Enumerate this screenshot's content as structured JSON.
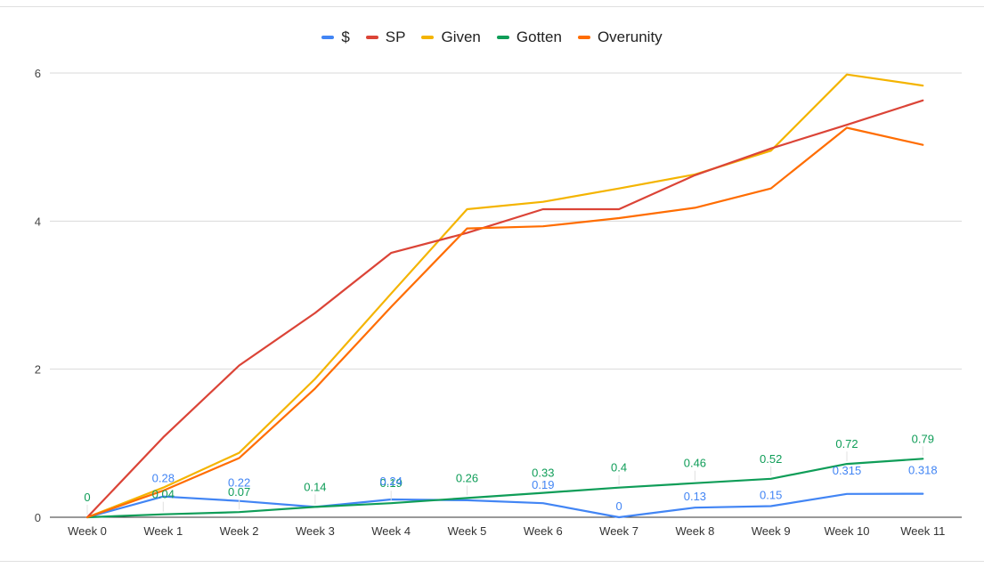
{
  "chart_data": {
    "type": "line",
    "title": "",
    "xlabel": "",
    "ylabel": "",
    "ylim": [
      0,
      6
    ],
    "yticks": [
      0,
      2,
      4,
      6
    ],
    "grid": true,
    "legend_position": "top",
    "categories": [
      "Week 0",
      "Week 1",
      "Week 2",
      "Week 3",
      "Week 4",
      "Week 5",
      "Week 6",
      "Week 7",
      "Week 8",
      "Week 9",
      "Week 10",
      "Week 11"
    ],
    "series": [
      {
        "name": "$",
        "color": "#4285f4",
        "values": [
          0,
          0.28,
          0.22,
          0.14,
          0.24,
          0.23,
          0.19,
          0,
          0.13,
          0.15,
          0.315,
          0.318
        ],
        "labels": [
          "",
          "0.28",
          "0.22",
          "",
          "0.24",
          "",
          "0.19",
          "0",
          "0.13",
          "0.15",
          "0.315",
          "0.318"
        ]
      },
      {
        "name": "SP",
        "color": "#db4437",
        "values": [
          0,
          1.08,
          2.05,
          2.76,
          3.57,
          3.84,
          4.16,
          4.16,
          4.62,
          4.98,
          5.3,
          5.63
        ],
        "labels": []
      },
      {
        "name": "Given",
        "color": "#f4b400",
        "values": [
          0,
          0.4,
          0.87,
          1.87,
          3.02,
          4.16,
          4.26,
          4.44,
          4.63,
          4.95,
          5.98,
          5.83
        ],
        "labels": []
      },
      {
        "name": "Gotten",
        "color": "#0f9d58",
        "values": [
          0,
          0.04,
          0.07,
          0.14,
          0.19,
          0.26,
          0.33,
          0.4,
          0.46,
          0.52,
          0.72,
          0.79
        ],
        "labels": [
          "0",
          "0.04",
          "0.07",
          "0.14",
          "0.19",
          "0.26",
          "0.33",
          "0.4",
          "0.46",
          "0.52",
          "0.72",
          "0.79"
        ]
      },
      {
        "name": "Overunity",
        "color": "#ff6d01",
        "values": [
          0,
          0.36,
          0.8,
          1.74,
          2.84,
          3.9,
          3.93,
          4.04,
          4.18,
          4.44,
          5.26,
          5.03
        ],
        "labels": []
      }
    ]
  }
}
